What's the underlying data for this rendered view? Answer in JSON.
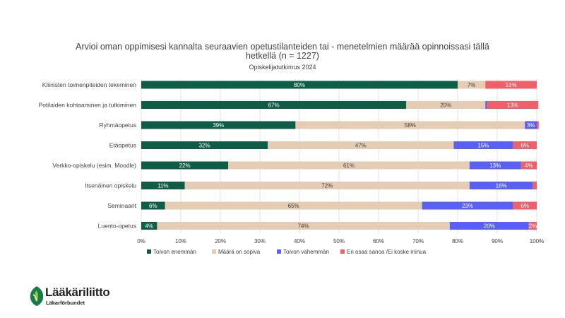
{
  "colors": {
    "series": [
      "#0f5d46",
      "#e4cdb4",
      "#5a5ff5",
      "#f0606a"
    ],
    "grid": "#d9d9d9",
    "text": "#404040"
  },
  "chart_data": {
    "type": "bar",
    "orientation": "horizontal",
    "stacked": true,
    "title": [
      "Arvioi oman oppimisesi kannalta seuraavien opetustilanteiden tai - menetelmien määrää opinnoissasi tällä",
      "hetkellä (n = 1227)"
    ],
    "subtitle": "Opiskelijatutkimus 2024",
    "categories": [
      "Kliinisten toimenpiteiden tekeminen",
      "Potilaiden kohtaaminen ja tutkiminen",
      "Ryhmäopetus",
      "Etäopetus",
      "Verkko-opiskelu (esim. Moodle)",
      "Itsenäinen opiskelu",
      "Seminaarit",
      "Luento-opetus"
    ],
    "series": [
      {
        "name": "Toivon enemmän",
        "values": [
          80,
          67,
          39,
          32,
          22,
          11,
          6,
          4
        ],
        "labels": [
          "80%",
          "67%",
          "39%",
          "32%",
          "22%",
          "11%",
          "6%",
          "4%"
        ]
      },
      {
        "name": "Määrä on sopiva",
        "values": [
          7,
          20,
          58,
          47,
          61,
          72,
          65,
          74
        ],
        "labels": [
          "7%",
          "20%",
          "58%",
          "47%",
          "61%",
          "72%",
          "65%",
          "74%"
        ]
      },
      {
        "name": "Toivon vähemmän",
        "values": [
          0,
          0.4,
          3,
          15,
          13,
          16,
          23,
          20
        ],
        "labels": [
          "",
          "",
          "3%",
          "15%",
          "13%",
          "16%",
          "23%",
          "20%"
        ]
      },
      {
        "name": "En osaa sanoa /Ei koske minua",
        "values": [
          13,
          13,
          0.5,
          6,
          4,
          1,
          6,
          2
        ],
        "labels": [
          "13%",
          "13%",
          "",
          "6%",
          "4%",
          "",
          "6%",
          "2%"
        ]
      }
    ],
    "xlim": [
      0,
      100
    ],
    "xticks": [
      "0%",
      "10%",
      "20%",
      "30%",
      "40%",
      "50%",
      "60%",
      "70%",
      "80%",
      "90%",
      "100%"
    ],
    "grid": true,
    "legend_position": "bottom"
  },
  "logo": {
    "name": "Lääkäriliitto",
    "sub": "Läkarförbundet"
  }
}
